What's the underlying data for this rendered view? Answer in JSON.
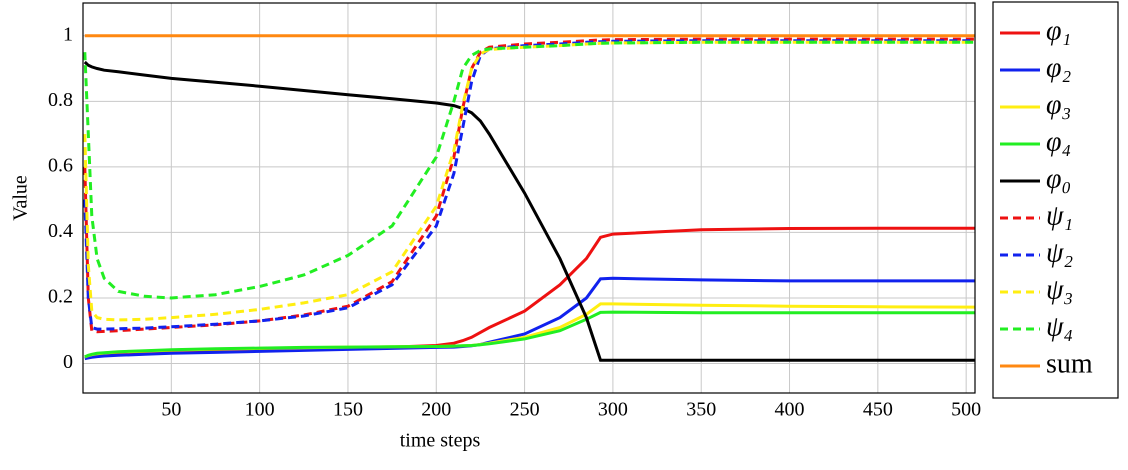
{
  "chart_data": {
    "type": "line",
    "xlabel": "time steps",
    "ylabel": "Value",
    "x": [
      1,
      3,
      5,
      8,
      12,
      20,
      35,
      50,
      75,
      100,
      125,
      150,
      175,
      200,
      210,
      215,
      220,
      225,
      230,
      250,
      270,
      285,
      293,
      300,
      350,
      400,
      450,
      505
    ],
    "xlim": [
      0,
      505
    ],
    "ylim": [
      -0.09,
      1.1
    ],
    "xticks": [
      50,
      100,
      150,
      200,
      250,
      300,
      350,
      400,
      450,
      500
    ],
    "yticks": [
      0,
      0.2,
      0.4,
      0.6,
      0.8,
      1
    ],
    "grid": true,
    "legend": "outside-right",
    "series": [
      {
        "name": "φ₁",
        "color": "#ee1111",
        "dashed": false,
        "values": [
          0.02,
          0.022,
          0.024,
          0.026,
          0.028,
          0.03,
          0.033,
          0.035,
          0.038,
          0.041,
          0.044,
          0.047,
          0.05,
          0.055,
          0.062,
          0.07,
          0.08,
          0.095,
          0.11,
          0.16,
          0.24,
          0.32,
          0.385,
          0.395,
          0.408,
          0.412,
          0.413,
          0.413
        ]
      },
      {
        "name": "φ₂",
        "color": "#1122ee",
        "dashed": false,
        "values": [
          0.015,
          0.017,
          0.019,
          0.021,
          0.023,
          0.025,
          0.028,
          0.031,
          0.034,
          0.037,
          0.04,
          0.043,
          0.046,
          0.049,
          0.05,
          0.052,
          0.054,
          0.058,
          0.065,
          0.09,
          0.14,
          0.2,
          0.258,
          0.26,
          0.255,
          0.252,
          0.252,
          0.252
        ]
      },
      {
        "name": "φ₃",
        "color": "#ffee11",
        "dashed": false,
        "values": [
          0.02,
          0.024,
          0.027,
          0.03,
          0.032,
          0.035,
          0.038,
          0.041,
          0.044,
          0.046,
          0.048,
          0.05,
          0.051,
          0.052,
          0.053,
          0.054,
          0.055,
          0.058,
          0.062,
          0.08,
          0.11,
          0.15,
          0.182,
          0.182,
          0.178,
          0.175,
          0.173,
          0.172
        ]
      },
      {
        "name": "φ₄",
        "color": "#22ee22",
        "dashed": false,
        "values": [
          0.02,
          0.025,
          0.028,
          0.031,
          0.033,
          0.036,
          0.039,
          0.042,
          0.045,
          0.047,
          0.049,
          0.05,
          0.051,
          0.052,
          0.053,
          0.054,
          0.055,
          0.057,
          0.06,
          0.075,
          0.1,
          0.135,
          0.156,
          0.157,
          0.155,
          0.155,
          0.155,
          0.155
        ]
      },
      {
        "name": "φ₀",
        "color": "#000000",
        "dashed": false,
        "values": [
          0.92,
          0.91,
          0.905,
          0.9,
          0.895,
          0.89,
          0.88,
          0.87,
          0.858,
          0.846,
          0.833,
          0.82,
          0.808,
          0.795,
          0.787,
          0.778,
          0.765,
          0.74,
          0.7,
          0.52,
          0.32,
          0.14,
          0.01,
          0.01,
          0.01,
          0.01,
          0.01,
          0.01
        ]
      },
      {
        "name": "ψ₁",
        "color": "#ee1111",
        "dashed": true,
        "values": [
          0.6,
          0.2,
          0.1,
          0.097,
          0.098,
          0.1,
          0.105,
          0.11,
          0.118,
          0.13,
          0.148,
          0.175,
          0.25,
          0.45,
          0.63,
          0.78,
          0.9,
          0.95,
          0.965,
          0.975,
          0.98,
          0.985,
          0.987,
          0.988,
          0.99,
          0.99,
          0.99,
          0.99
        ]
      },
      {
        "name": "ψ₂",
        "color": "#1122ee",
        "dashed": true,
        "values": [
          0.5,
          0.2,
          0.11,
          0.105,
          0.105,
          0.106,
          0.108,
          0.112,
          0.12,
          0.13,
          0.145,
          0.17,
          0.24,
          0.42,
          0.58,
          0.72,
          0.86,
          0.94,
          0.96,
          0.97,
          0.975,
          0.98,
          0.982,
          0.983,
          0.985,
          0.985,
          0.985,
          0.985
        ]
      },
      {
        "name": "ψ₃",
        "color": "#ffee11",
        "dashed": true,
        "values": [
          0.7,
          0.3,
          0.16,
          0.14,
          0.135,
          0.133,
          0.135,
          0.14,
          0.15,
          0.165,
          0.185,
          0.21,
          0.28,
          0.48,
          0.65,
          0.79,
          0.9,
          0.945,
          0.958,
          0.965,
          0.97,
          0.975,
          0.977,
          0.978,
          0.98,
          0.98,
          0.98,
          0.98
        ]
      },
      {
        "name": "ψ₄",
        "color": "#22ee22",
        "dashed": true,
        "values": [
          0.95,
          0.7,
          0.45,
          0.32,
          0.26,
          0.22,
          0.205,
          0.2,
          0.21,
          0.235,
          0.27,
          0.33,
          0.42,
          0.63,
          0.8,
          0.9,
          0.94,
          0.955,
          0.96,
          0.965,
          0.97,
          0.975,
          0.977,
          0.978,
          0.98,
          0.98,
          0.98,
          0.98
        ]
      },
      {
        "name": "sum",
        "color": "#ff8811",
        "dashed": false,
        "values": [
          1,
          1,
          1,
          1,
          1,
          1,
          1,
          1,
          1,
          1,
          1,
          1,
          1,
          1,
          1,
          1,
          1,
          1,
          1,
          1,
          1,
          1,
          1,
          1,
          1,
          1,
          1,
          1
        ]
      }
    ]
  }
}
